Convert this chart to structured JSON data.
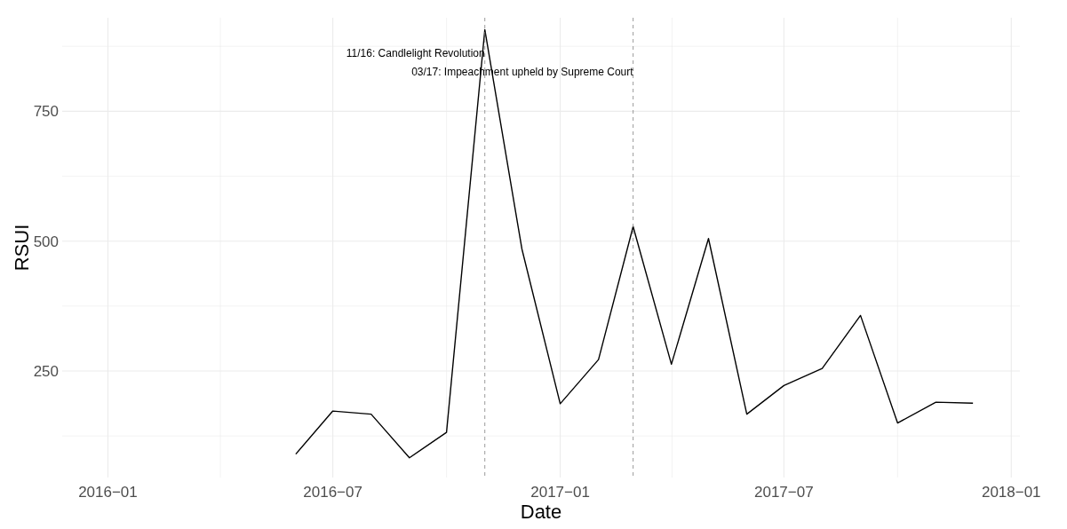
{
  "chart_data": {
    "type": "line",
    "xlabel": "Date",
    "ylabel": "RSUI",
    "x": [
      "2016-06-01",
      "2016-07-01",
      "2016-08-01",
      "2016-09-01",
      "2016-10-01",
      "2016-11-01",
      "2016-12-01",
      "2017-01-01",
      "2017-02-01",
      "2017-03-01",
      "2017-04-01",
      "2017-05-01",
      "2017-06-01",
      "2017-07-01",
      "2017-08-01",
      "2017-09-01",
      "2017-10-01",
      "2017-11-01",
      "2017-12-01"
    ],
    "series": [
      {
        "color": "#000000",
        "values": [
          90,
          173,
          167,
          83,
          132,
          907,
          485,
          187,
          272,
          528,
          263,
          505,
          167,
          222,
          255,
          357,
          150,
          190,
          188
        ]
      }
    ],
    "xlim": [
      "2015-11-25",
      "2018-01-08"
    ],
    "xticks": [
      {
        "value": "2016-01",
        "label": "2016−01"
      },
      {
        "value": "2016-07",
        "label": "2016−07"
      },
      {
        "value": "2017-01",
        "label": "2017−01"
      },
      {
        "value": "2017-07",
        "label": "2017−07"
      },
      {
        "value": "2018-01",
        "label": "2018−01"
      }
    ],
    "ylim": [
      45,
      930
    ],
    "yticks": [
      250,
      500,
      750
    ],
    "ref_lines": [
      {
        "axis": "x",
        "value": "2016-11-01",
        "label": "11/16: Candlelight Revolution",
        "color": "#808080",
        "line_style": "dashed"
      },
      {
        "axis": "x",
        "value": "2017-03-01",
        "label": "03/17: Impeachment upheld by Supreme Court",
        "color": "#808080",
        "line_style": "dashed"
      }
    ],
    "grid": true,
    "line_style": "solid"
  }
}
